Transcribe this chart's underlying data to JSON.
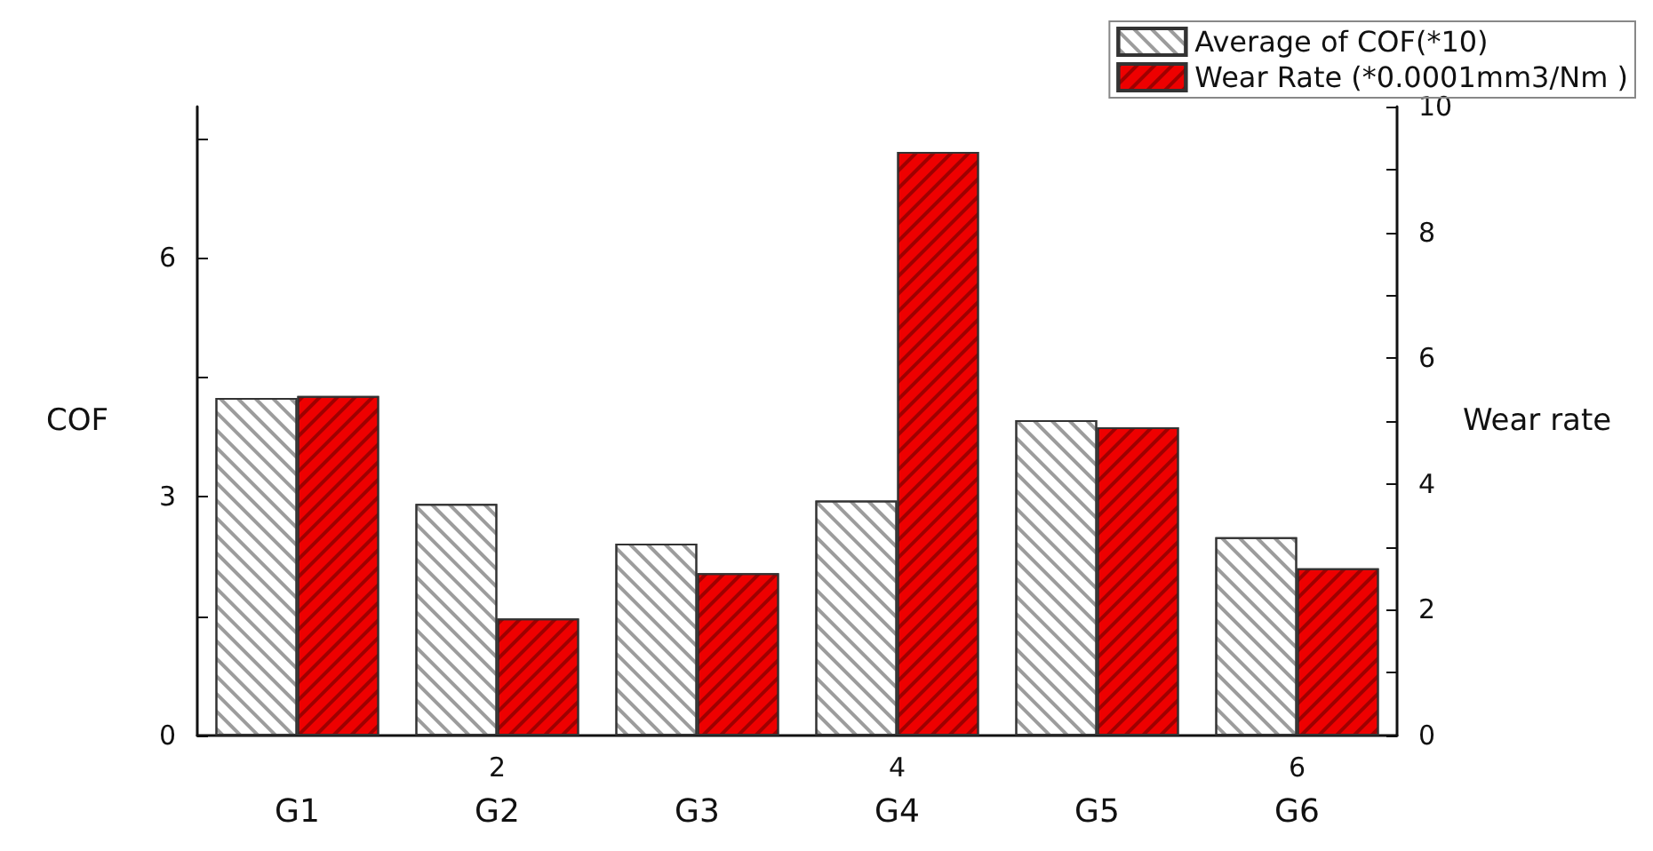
{
  "chart_data": {
    "type": "bar",
    "ylabel": "COF",
    "y2label": "Wear rate",
    "categories": [
      "G1",
      "G2",
      "G3",
      "G4",
      "G5",
      "G6"
    ],
    "annotations": [
      "2",
      "4",
      "6"
    ],
    "ylim": [
      0,
      7.9
    ],
    "yticks": [
      0,
      {
        "value": 1.5,
        "label": null
      },
      3,
      {
        "value": 4.5,
        "label": null
      },
      6,
      {
        "value": 7.5,
        "label": null
      }
    ],
    "y2lim": [
      0,
      10
    ],
    "y2ticks": [
      0,
      {
        "value": 1,
        "label": null
      },
      2,
      {
        "value": 3,
        "label": null
      },
      4,
      {
        "value": 5,
        "label": null
      },
      6,
      {
        "value": 7,
        "label": null
      },
      8,
      {
        "value": 9,
        "label": null
      },
      10
    ],
    "series": [
      {
        "name": "Average of COF(*10)",
        "color": "#ffffff",
        "values": [
          4.24,
          2.91,
          2.41,
          2.95,
          3.96,
          2.49
        ]
      },
      {
        "name": "Wear Rate (*0.0001mm3/Nm )",
        "color": "#ee0000",
        "axis": "y2",
        "values": [
          5.4,
          1.86,
          2.58,
          9.28,
          4.9,
          2.66
        ]
      }
    ],
    "legend": "top right",
    "grid": false
  }
}
